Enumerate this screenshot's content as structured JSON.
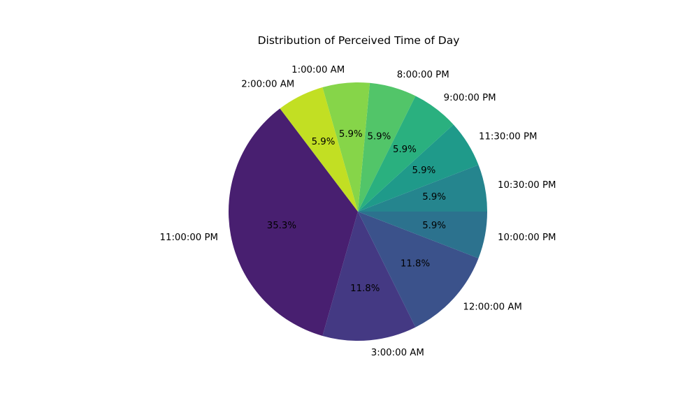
{
  "chart_data": {
    "type": "pie",
    "title": "Distribution of Perceived Time of Day",
    "legend": "none",
    "start_angle_deg": 127.06,
    "direction": "counterclockwise",
    "slices": [
      {
        "label": "11:00:00 PM",
        "value": 6,
        "pct_label": "35.3%",
        "color": "#481f70"
      },
      {
        "label": "3:00:00 AM",
        "value": 2,
        "pct_label": "11.8%",
        "color": "#443983"
      },
      {
        "label": "12:00:00 AM",
        "value": 2,
        "pct_label": "11.8%",
        "color": "#3b528b"
      },
      {
        "label": "10:00:00 PM",
        "value": 1,
        "pct_label": "5.9%",
        "color": "#2c728e"
      },
      {
        "label": "10:30:00 PM",
        "value": 1,
        "pct_label": "5.9%",
        "color": "#25858e"
      },
      {
        "label": "11:30:00 PM",
        "value": 1,
        "pct_label": "5.9%",
        "color": "#1f9a8a"
      },
      {
        "label": "9:00:00 PM",
        "value": 1,
        "pct_label": "5.9%",
        "color": "#2ab07f"
      },
      {
        "label": "8:00:00 PM",
        "value": 1,
        "pct_label": "5.9%",
        "color": "#52c569"
      },
      {
        "label": "1:00:00 AM",
        "value": 1,
        "pct_label": "5.9%",
        "color": "#86d549"
      },
      {
        "label": "2:00:00 AM",
        "value": 1,
        "pct_label": "5.9%",
        "color": "#c2df23"
      }
    ]
  }
}
